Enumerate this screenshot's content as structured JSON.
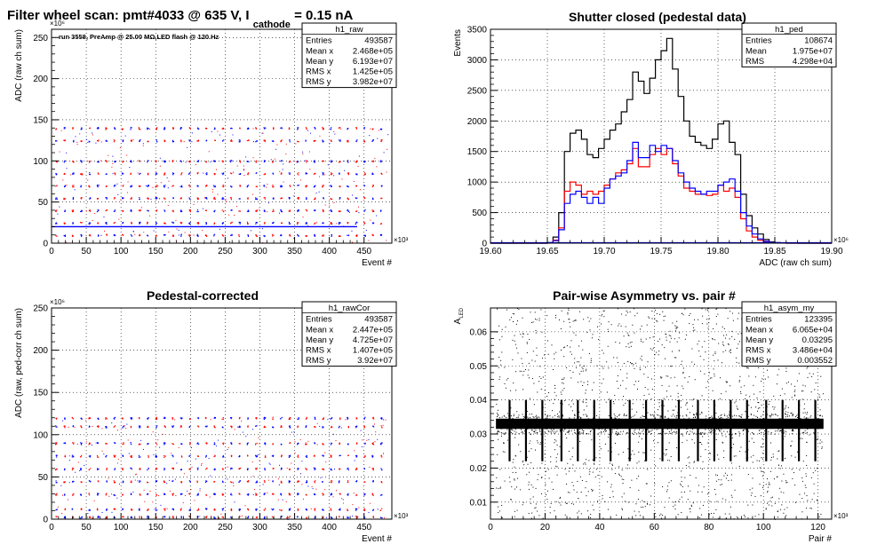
{
  "page_title": {
    "main": "Filter wheel scan: pmt#4033 @   635 V, I",
    "sub": "cathode",
    "tail": " = 0.15 nA"
  },
  "chart_data": [
    {
      "id": "raw",
      "type": "scatter",
      "title": "",
      "annotation": "run 3558, PreAmp @ 25.00 MΩ,LED flash @  120.Hz",
      "xlabel": "Event #",
      "ylabel": "ADC (raw ch sum)",
      "x_multiplier": "×10³",
      "y_multiplier": "×10⁶",
      "xlim": [
        0,
        490
      ],
      "ylim": [
        0,
        260
      ],
      "xticks": [
        0,
        50,
        100,
        150,
        200,
        250,
        300,
        350,
        400,
        450
      ],
      "yticks": [
        0,
        50,
        100,
        150,
        200,
        250
      ],
      "grid": true,
      "baseline_y": 20,
      "levels_y": [
        10,
        25,
        40,
        55,
        70,
        85,
        100,
        125,
        140
      ],
      "period_x": 12,
      "colors": [
        "#ff0000",
        "#0000ff"
      ],
      "stats": {
        "name": "h1_raw",
        "rows": [
          {
            "label": "Entries",
            "value": "493587"
          },
          {
            "label": "Mean x",
            "value": "2.468e+05"
          },
          {
            "label": "Mean y",
            "value": "6.193e+07"
          },
          {
            "label": "RMS x",
            "value": "1.425e+05"
          },
          {
            "label": "RMS y",
            "value": "3.982e+07"
          }
        ]
      }
    },
    {
      "id": "ped",
      "type": "line",
      "title": "Shutter closed (pedestal data)",
      "xlabel": "ADC (raw ch sum)",
      "ylabel": "Events",
      "x_multiplier": "×10⁶",
      "xlim": [
        19.6,
        19.9
      ],
      "ylim": [
        0,
        3500
      ],
      "xticks": [
        19.6,
        19.65,
        19.7,
        19.75,
        19.8,
        19.85,
        19.9
      ],
      "yticks": [
        0,
        500,
        1000,
        1500,
        2000,
        2500,
        3000,
        3500
      ],
      "grid": true,
      "x": [
        19.65,
        19.655,
        19.66,
        19.665,
        19.67,
        19.675,
        19.68,
        19.685,
        19.69,
        19.695,
        19.7,
        19.705,
        19.71,
        19.715,
        19.72,
        19.725,
        19.73,
        19.735,
        19.74,
        19.745,
        19.75,
        19.755,
        19.76,
        19.765,
        19.77,
        19.775,
        19.78,
        19.785,
        19.79,
        19.795,
        19.8,
        19.805,
        19.81,
        19.815,
        19.82,
        19.825,
        19.83,
        19.835,
        19.84,
        19.845,
        19.85,
        19.855,
        19.86,
        19.865,
        19.87
      ],
      "series": [
        {
          "name": "",
          "color": "#000000",
          "values": [
            10,
            100,
            500,
            1500,
            1800,
            1850,
            1700,
            1450,
            1400,
            1550,
            1700,
            1850,
            1950,
            2150,
            2350,
            2800,
            2650,
            2450,
            2700,
            3000,
            3150,
            3350,
            2850,
            2400,
            2000,
            1750,
            1650,
            1600,
            1550,
            1700,
            1950,
            2000,
            1650,
            1450,
            800,
            450,
            250,
            150,
            60,
            20,
            10,
            5,
            3,
            1,
            0
          ]
        },
        {
          "name": "",
          "color": "#ff0000",
          "values": [
            5,
            50,
            250,
            850,
            1000,
            950,
            800,
            850,
            800,
            850,
            950,
            1050,
            1150,
            1200,
            1300,
            1550,
            1250,
            1250,
            1450,
            1550,
            1450,
            1550,
            1300,
            1100,
            900,
            850,
            800,
            800,
            780,
            800,
            950,
            850,
            900,
            750,
            400,
            200,
            100,
            50,
            20,
            8,
            3,
            1,
            0,
            0,
            0
          ]
        },
        {
          "name": "",
          "color": "#0000ff",
          "values": [
            3,
            40,
            220,
            650,
            800,
            850,
            750,
            650,
            750,
            650,
            900,
            1050,
            1100,
            1150,
            1350,
            1650,
            1400,
            1400,
            1600,
            1500,
            1600,
            1550,
            1350,
            1150,
            1000,
            900,
            850,
            800,
            850,
            850,
            950,
            1000,
            1050,
            850,
            500,
            280,
            150,
            70,
            30,
            10,
            4,
            1,
            0,
            0,
            0
          ]
        }
      ],
      "stats": {
        "name": "h1_ped",
        "rows": [
          {
            "label": "Entries",
            "value": "108674"
          },
          {
            "label": "Mean",
            "value": "1.975e+07"
          },
          {
            "label": "RMS",
            "value": "4.298e+04"
          }
        ]
      }
    },
    {
      "id": "rawcor",
      "type": "scatter",
      "title": "Pedestal-corrected",
      "xlabel": "Event #",
      "ylabel": "ADC (raw, ped-corr ch sum)",
      "x_multiplier": "×10³",
      "y_multiplier": "×10⁶",
      "xlim": [
        0,
        490
      ],
      "ylim": [
        0,
        250
      ],
      "xticks": [
        0,
        50,
        100,
        150,
        200,
        250,
        300,
        350,
        400,
        450
      ],
      "yticks": [
        0,
        50,
        100,
        150,
        200,
        250
      ],
      "grid": true,
      "levels_y": [
        3,
        12,
        30,
        45,
        60,
        75,
        90,
        110,
        120
      ],
      "period_x": 12,
      "colors": [
        "#ff0000",
        "#0000ff"
      ],
      "stats": {
        "name": "h1_rawCor",
        "rows": [
          {
            "label": "Entries",
            "value": "493587"
          },
          {
            "label": "Mean x",
            "value": "2.447e+05"
          },
          {
            "label": "Mean y",
            "value": "4.725e+07"
          },
          {
            "label": "RMS x",
            "value": "1.407e+05"
          },
          {
            "label": "RMS y",
            "value": "3.92e+07"
          }
        ]
      }
    },
    {
      "id": "asym",
      "type": "scatter",
      "title": "Pair-wise Asymmetry vs. pair #",
      "xlabel": "Pair #",
      "ylabel": "A",
      "ylabel_sub": "LED",
      "x_multiplier": "×10³",
      "xlim": [
        0,
        125
      ],
      "ylim": [
        0.005,
        0.067
      ],
      "xticks": [
        0,
        20,
        40,
        60,
        80,
        100,
        120
      ],
      "yticks": [
        0.01,
        0.02,
        0.03,
        0.04,
        0.05,
        0.06
      ],
      "grid": true,
      "band_y": [
        0.0315,
        0.0345
      ],
      "band_x": [
        2,
        122
      ],
      "spike_x": [
        7,
        13,
        19,
        26,
        32,
        38,
        44,
        51,
        57,
        63,
        69,
        76,
        82,
        88,
        94,
        101,
        107,
        113,
        119
      ],
      "spike_y_top": 0.04,
      "spike_y_bottom": 0.022,
      "stats": {
        "name": "h1_asym_my",
        "rows": [
          {
            "label": "Entries",
            "value": "123395"
          },
          {
            "label": "Mean x",
            "value": "6.065e+04"
          },
          {
            "label": "Mean y",
            "value": "0.03295"
          },
          {
            "label": "RMS x",
            "value": "3.486e+04"
          },
          {
            "label": "RMS y",
            "value": "0.003552"
          }
        ]
      }
    }
  ]
}
